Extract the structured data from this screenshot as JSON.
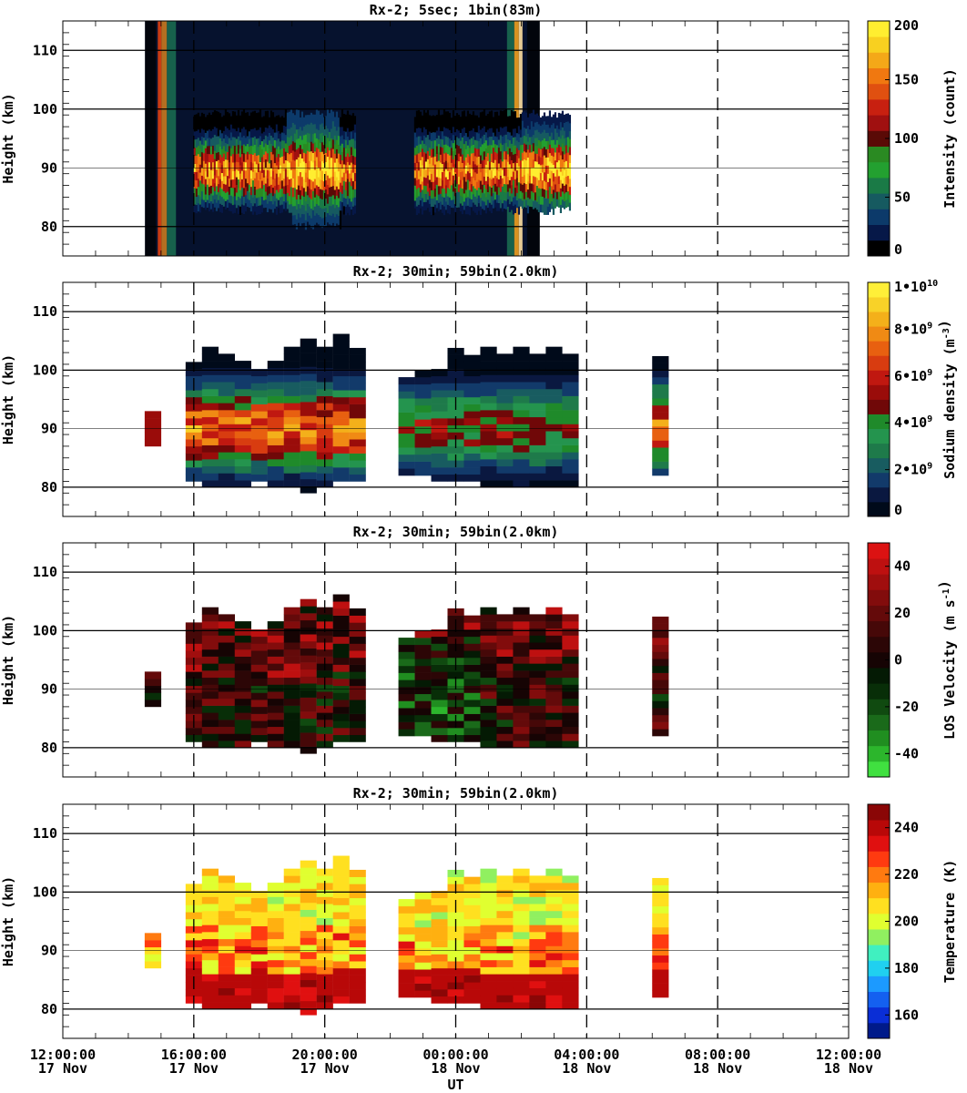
{
  "chart_data": [
    {
      "type": "heatmap",
      "title": "Rx-2;  5sec; 1bin(83m)",
      "ylabel": "Height (km)",
      "ylim": [
        75,
        115
      ],
      "yticks": [
        80,
        90,
        100,
        110
      ],
      "xlim": [
        "2023-11-17T12:00:00",
        "2023-11-18T12:00:00"
      ],
      "colorbar": {
        "label": "Intensity (count)",
        "range": [
          0,
          200
        ],
        "ticks": [
          "0",
          "50",
          "100",
          "150",
          "200"
        ],
        "colors": [
          "#000000",
          "#061848",
          "#0c3a6a",
          "#165a60",
          "#1a7a46",
          "#23a030",
          "#2a8a22",
          "#5a0a06",
          "#a01010",
          "#c82010",
          "#e05010",
          "#f07810",
          "#f4a818",
          "#f8d020",
          "#ffee30"
        ]
      },
      "observation": {
        "start_ut": 14.9,
        "end_ut": 25.9,
        "layer_top_km": 100,
        "layer_bottom_km": 81,
        "gap_ut": [
          20.9,
          22.7
        ]
      }
    },
    {
      "type": "heatmap",
      "title": "Rx-2; 30min; 59bin(2.0km)",
      "ylabel": "Height (km)",
      "ylim": [
        75,
        115
      ],
      "yticks": [
        80,
        90,
        100,
        110
      ],
      "colorbar": {
        "label": "Sodium density (m^-3)",
        "range": [
          0,
          10000000000.0
        ],
        "ticks": [
          "0",
          "2•10^9",
          "4•10^9",
          "6•10^9",
          "8•10^9",
          "1•10^10"
        ],
        "colors": [
          "#000a1a",
          "#0a1840",
          "#123a6a",
          "#185c60",
          "#1e7a4a",
          "#24944e",
          "#1f8a2a",
          "#700808",
          "#9a0c0a",
          "#c01810",
          "#d83c10",
          "#e86010",
          "#f08a14",
          "#f4b01a",
          "#f8d228",
          "#ffef38"
        ]
      },
      "time_columns_ut": [
        14.75,
        16.0,
        16.5,
        17.0,
        17.5,
        18.0,
        18.5,
        19.0,
        19.5,
        20.0,
        20.5,
        21.0,
        22.5,
        23.0,
        23.5,
        24.0,
        24.5,
        25.0,
        25.5,
        26.0,
        26.5,
        27.0,
        27.5,
        30.25
      ],
      "column_top_km": [
        92,
        101,
        103,
        102,
        101,
        100,
        101,
        103,
        105,
        104,
        106,
        103,
        98,
        100,
        100,
        103,
        102,
        103,
        102,
        103,
        102,
        103,
        102,
        102
      ],
      "column_bottom_km": [
        87,
        81,
        80,
        80,
        80,
        81,
        80,
        80,
        79,
        80,
        81,
        81,
        82,
        82,
        81,
        81,
        81,
        80,
        80,
        80,
        80,
        80,
        80,
        82
      ]
    },
    {
      "type": "heatmap",
      "title": "Rx-2; 30min; 59bin(2.0km)",
      "ylabel": "Height (km)",
      "ylim": [
        75,
        115
      ],
      "yticks": [
        80,
        90,
        100,
        110
      ],
      "colorbar": {
        "label": "LOS Velocity (m s^-1)",
        "range": [
          -50,
          50
        ],
        "ticks": [
          "-40",
          "-20",
          "0",
          "20",
          "40"
        ],
        "colors": [
          "#40e040",
          "#2cb62c",
          "#208e20",
          "#1a6a1a",
          "#104a10",
          "#082e08",
          "#041a04",
          "#160404",
          "#2c0606",
          "#460808",
          "#640a0a",
          "#820c0c",
          "#a00e0e",
          "#be1010",
          "#dc1212"
        ]
      }
    },
    {
      "type": "heatmap",
      "title": "Rx-2; 30min; 59bin(2.0km)",
      "ylabel": "Height (km)",
      "ylim": [
        75,
        115
      ],
      "yticks": [
        80,
        90,
        100,
        110
      ],
      "colorbar": {
        "label": "Temperature (K)",
        "range": [
          150,
          250
        ],
        "ticks": [
          "160",
          "180",
          "200",
          "220",
          "240"
        ],
        "colors": [
          "#001a8a",
          "#0a2ed6",
          "#1460f0",
          "#1c9aff",
          "#20d0f0",
          "#40f0c0",
          "#90f060",
          "#e0ff30",
          "#ffe020",
          "#ffb010",
          "#ff7a10",
          "#ff3a10",
          "#e01010",
          "#b80808",
          "#8a0606"
        ]
      }
    }
  ],
  "x_axis": {
    "label": "UT",
    "ticks": [
      {
        "time": "12:00:00",
        "date": "17 Nov"
      },
      {
        "time": "16:00:00",
        "date": "17 Nov"
      },
      {
        "time": "20:00:00",
        "date": "17 Nov"
      },
      {
        "time": "00:00:00",
        "date": "18 Nov"
      },
      {
        "time": "04:00:00",
        "date": "18 Nov"
      },
      {
        "time": "08:00:00",
        "date": "18 Nov"
      },
      {
        "time": "12:00:00",
        "date": "18 Nov"
      }
    ]
  }
}
